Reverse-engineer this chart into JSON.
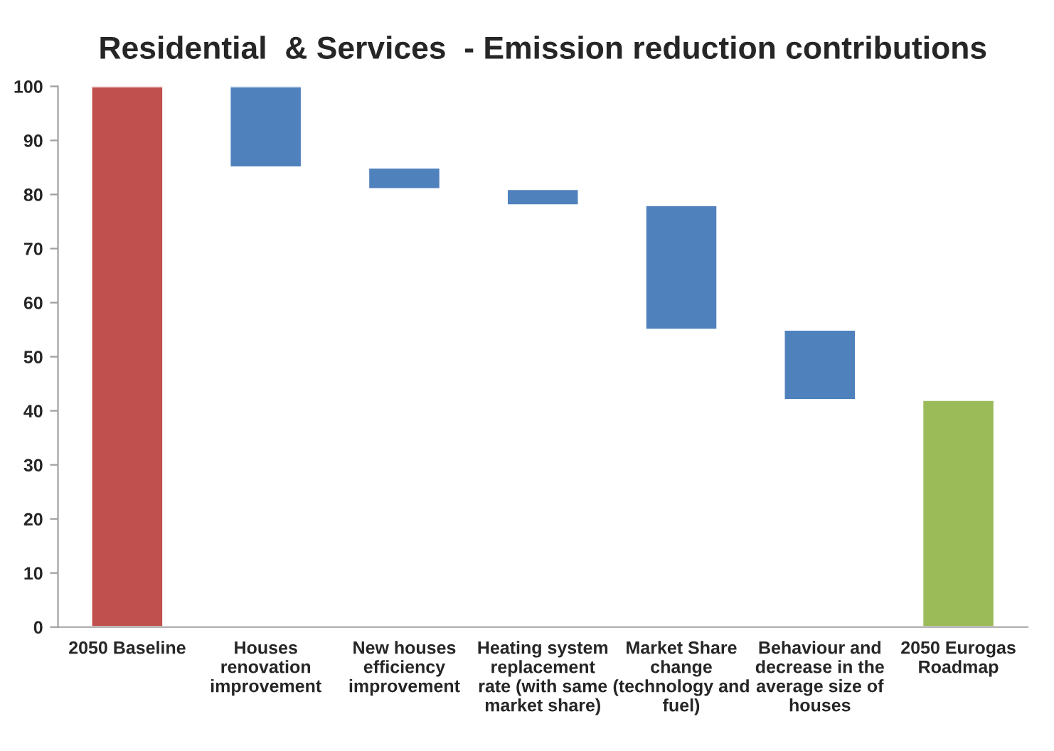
{
  "chart_data": {
    "type": "bar",
    "title": "Residential  & Services  - Emission reduction contributions",
    "categories": [
      "2050 Baseline",
      "Houses\nrenovation\nimprovement",
      "New houses\nefficiency\nimprovement",
      "Heating system\nreplacement\nrate (with same\nmarket share)",
      "Market Share\nchange\n(technology and\nfuel)",
      "Behaviour and\ndecrease in the\naverage size of\nhouses",
      "2050 Eurogas\nRoadmap"
    ],
    "values": [
      100,
      15,
      4,
      3,
      23,
      13,
      42
    ],
    "base": [
      0,
      85,
      81,
      78,
      55,
      42,
      0
    ],
    "colors": [
      "#c0504d",
      "#4f81bd",
      "#4f81bd",
      "#4f81bd",
      "#4f81bd",
      "#4f81bd",
      "#9bbb59"
    ],
    "ylim": [
      0,
      100
    ],
    "yticks": [
      0,
      10,
      20,
      30,
      40,
      50,
      60,
      70,
      80,
      90,
      100
    ],
    "grid": false,
    "legend": false
  }
}
